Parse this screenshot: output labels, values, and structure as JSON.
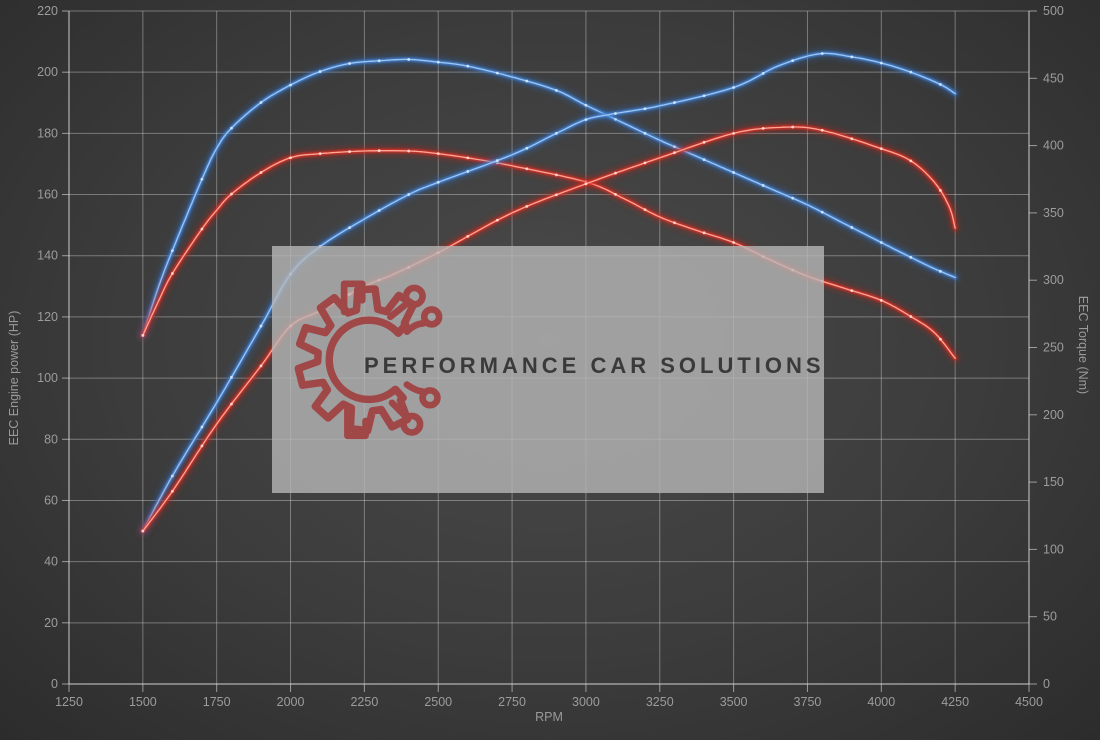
{
  "watermark": {
    "text": "PERFORMANCE CAR SOLUTIONS",
    "text_color": "#3a3a3a",
    "logo": "gear-circuit-logo",
    "logo_color": "#a04747"
  },
  "chart_data": {
    "type": "line",
    "title": "",
    "xlabel": "RPM",
    "ylabel_left": "EEC Engine power (HP)",
    "ylabel_right": "EEC Torque (Nm)",
    "grid": true,
    "legend": "none",
    "axes": {
      "x": {
        "label": "RPM",
        "min": 1250,
        "max": 4500,
        "step": 250,
        "ticks": [
          1250,
          1500,
          1750,
          2000,
          2250,
          2500,
          2750,
          3000,
          3250,
          3500,
          3750,
          4000,
          4250,
          4500
        ]
      },
      "left": {
        "label": "EEC Engine power (HP)",
        "min": 0,
        "max": 220,
        "step": 20,
        "ticks": [
          0,
          20,
          40,
          60,
          80,
          100,
          120,
          140,
          160,
          180,
          200,
          220
        ]
      },
      "right": {
        "label": "EEC Torque (Nm)",
        "min": 0,
        "max": 500,
        "step": 50,
        "ticks": [
          0,
          50,
          100,
          150,
          200,
          250,
          300,
          350,
          400,
          450,
          500
        ]
      }
    },
    "colors": {
      "blue": {
        "glow": "#2e6cc0",
        "main": "#4486dd",
        "core": "#a6cdf4",
        "dot": "#d8ecff"
      },
      "red": {
        "glow": "#c42318",
        "main": "#e03326",
        "core": "#ffb4a4",
        "dot": "#ffe2da"
      },
      "grid_line": "rgba(215,215,215,0.42)",
      "axis_line": "rgba(225,225,225,0.6)"
    },
    "series": [
      {
        "name": "torque-blue",
        "axis": "right",
        "unit": "Nm",
        "color_key": "blue",
        "peak": {
          "rpm": 2400,
          "value": 464
        },
        "rpm": [
          1500,
          1550,
          1600,
          1700,
          1750,
          1800,
          1900,
          2000,
          2100,
          2200,
          2300,
          2400,
          2500,
          2600,
          2750,
          2900,
          3000,
          3125,
          3250,
          3375,
          3500,
          3625,
          3750,
          3875,
          4000,
          4100,
          4175,
          4250
        ],
        "values": [
          259,
          293,
          322,
          375,
          398,
          413,
          432,
          445,
          455,
          461,
          463,
          464,
          462,
          459,
          451,
          441,
          430,
          417,
          404,
          392,
          380,
          368,
          356,
          342,
          328,
          317,
          309,
          302
        ]
      },
      {
        "name": "torque-red",
        "axis": "right",
        "unit": "Nm",
        "color_key": "red",
        "peak": {
          "rpm": 2400,
          "value": 396
        },
        "rpm": [
          1500,
          1550,
          1600,
          1700,
          1750,
          1800,
          1900,
          2000,
          2100,
          2250,
          2400,
          2500,
          2625,
          2750,
          3000,
          3125,
          3250,
          3375,
          3500,
          3625,
          3750,
          3875,
          4000,
          4100,
          4180,
          4250
        ],
        "values": [
          259,
          283,
          305,
          338,
          352,
          364,
          380,
          391,
          394,
          396,
          396,
          394,
          390,
          385,
          373,
          361,
          347,
          337,
          328,
          315,
          303,
          294,
          285,
          273,
          261,
          242
        ]
      },
      {
        "name": "power-blue",
        "axis": "left",
        "unit": "HP",
        "color_key": "blue",
        "peak": {
          "rpm": 3790,
          "value": 206
        },
        "rpm": [
          1500,
          1600,
          1750,
          1900,
          2000,
          2100,
          2250,
          2400,
          2500,
          2750,
          2900,
          3000,
          3100,
          3250,
          3500,
          3650,
          3790,
          3900,
          4000,
          4100,
          4200,
          4250
        ],
        "values": [
          50,
          68,
          92,
          117,
          134,
          143,
          152,
          160,
          164,
          173,
          180,
          184.5,
          186.5,
          189,
          195,
          202,
          206,
          205,
          203,
          200,
          196,
          193
        ]
      },
      {
        "name": "power-red",
        "axis": "left",
        "unit": "HP",
        "color_key": "red",
        "peak": {
          "rpm": 3670,
          "value": 182
        },
        "rpm": [
          1500,
          1600,
          1750,
          1900,
          2000,
          2100,
          2250,
          2350,
          2500,
          2750,
          3000,
          3250,
          3500,
          3670,
          3800,
          4000,
          4100,
          4180,
          4230,
          4250
        ],
        "values": [
          50,
          63,
          85,
          104,
          117,
          122,
          130,
          134,
          141,
          154,
          163.5,
          172,
          180,
          182,
          181,
          175,
          171,
          164,
          156,
          149
        ]
      }
    ]
  }
}
